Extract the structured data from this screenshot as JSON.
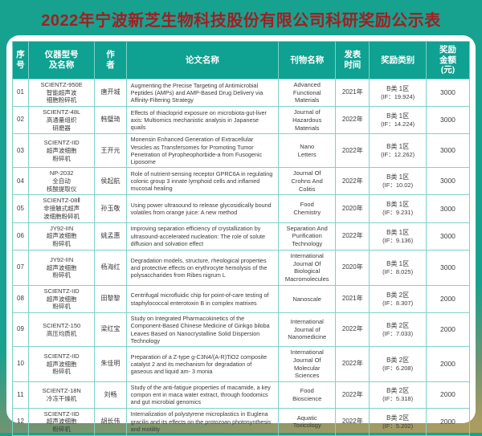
{
  "title": "2022年宁波新芝生物科技股份有限公司科研奖励公示表",
  "colors": {
    "background_teal": "#17a28f",
    "background_olive": "#a69b62",
    "header_bg": "#0fa191",
    "title_red": "#a31e22",
    "cell_border": "#7ed2c8",
    "card_bg": "#ffffff"
  },
  "table": {
    "headers": [
      "序\n号",
      "仪器型号\n及名称",
      "作\n者",
      "论文名称",
      "刊物名称",
      "发表\n时间",
      "奖励类别",
      "奖励\n金额\n(元)"
    ],
    "rows": [
      {
        "no": "01",
        "model": "SCIENTZ-950E\n智能超声波\n细胞粉碎机",
        "author": "唐开城",
        "paper": "Augmenting the Precise Targeting of Antimicrobial Peptides (AMPs) and AMP-Based Drug Delivery via Affinity-Filtering Strategy",
        "journal": "Advanced\nFunctional\nMaterials",
        "year": "2021年",
        "award_class": "B类 1区",
        "award_if": "(IF：19.924)",
        "amount": "3000"
      },
      {
        "no": "02",
        "model": "SCIENTZ-48L\n高通量组织\n研磨器",
        "author": "韩璧琦",
        "paper": "Effects of thiacloprid exposure on microbiota-gut-liver axis: Multiomics mechanistic analysis in Japanese quails",
        "journal": "Journal of\nHazardous\nMaterials",
        "year": "2022年",
        "award_class": "B类 1区",
        "award_if": "(IF：14.224)",
        "amount": "3000"
      },
      {
        "no": "03",
        "model": "SCIENTZ-IID\n超声波细胞\n粉碎机",
        "author": "王开元",
        "paper": "Monensin Enhanced Generation of Extracellular Vesicles as Transfersomes for Promoting Tumor Penetration of Pyropheophorbide-a from Fusogenic Liposome",
        "journal": "Nano\nLetters",
        "year": "2022年",
        "award_class": "B类 1区",
        "award_if": "(IF：12.262)",
        "amount": "3000"
      },
      {
        "no": "04",
        "model": "NP-2032\n全自动\n核酸提取仪",
        "author": "侯起航",
        "paper": "Role of nutrient-sensing receptor GPRC6A in regulating colonic group 3 innate lymphoid cells and inflamed mucosal healing",
        "journal": "Journal Of\nCrohns And\nColitis",
        "year": "2022年",
        "award_class": "B类 1区",
        "award_if": "(IF：10.02)",
        "amount": "3000"
      },
      {
        "no": "05",
        "model": "SCIENTZ-08Ⅱ\n非接触式超声\n波细胞粉碎机",
        "author": "孙玉敬",
        "paper": "Using power ultrasound to release glycosidically bound volatiles from orange juice: A new method",
        "journal": "Food\nChemistry",
        "year": "2020年",
        "award_class": "B类 1区",
        "award_if": "(IF：9.231)",
        "amount": "3000"
      },
      {
        "no": "06",
        "model": "JY92-IIN\n超声波细胞\n粉碎机",
        "author": "姚孟惠",
        "paper": "Improving separation efficiency of crystallization by ultrasound-accelerated nucleation: The role of solute diffusion and solvation effect",
        "journal": "Separation And\nPurification\nTechnology",
        "year": "2022年",
        "award_class": "B类 1区",
        "award_if": "(IF：9.136)",
        "amount": "3000"
      },
      {
        "no": "07",
        "model": "JY92-IIN\n超声波细胞\n粉碎机",
        "author": "杨海红",
        "paper": "Degradation models, structure, rheological properties and protective effects on erythrocyte hemolysis of the polysaccharides from Ribes nigrum L",
        "journal": "International\nJournal Of\nBiological\nMacromolecules",
        "year": "2020年",
        "award_class": "B类 1区",
        "award_if": "(IF：8.025)",
        "amount": "3000"
      },
      {
        "no": "08",
        "model": "SCIENTZ-IID\n超声波细胞\n粉碎机",
        "author": "田黎黎",
        "paper": "Centrifugal microfluidic chip for point-of-care testing of staphylococcal enterotoxin B in complex matrixes",
        "journal": "Nanoscale",
        "year": "2021年",
        "award_class": "B类 2区",
        "award_if": "(IF：8.307)",
        "amount": "2000"
      },
      {
        "no": "09",
        "model": "SCIENTZ-150\n高压均质机",
        "author": "梁红宝",
        "paper": "Study on Integrated Pharmacokinetics of the Component-Based Chinese Medicine of Ginkgo biloba Leaves Based on Nanocrystalline Solid Dispersion Technology",
        "journal": "International\nJournal of\nNanomedicine",
        "year": "2022年",
        "award_class": "B类 2区",
        "award_if": "(IF：7.033)",
        "amount": "2000"
      },
      {
        "no": "10",
        "model": "SCIENTZ-IID\n超声波细胞\n粉碎机",
        "author": "朱佳明",
        "paper": "Preparation of a Z-type g-C3N4/(A-R)TiO2 composite catalyst 2 and its mechanism for degradation of gaseous and liquid am- 3 monia",
        "journal": "International\nJournal Of\nMolecular Sciences",
        "year": "2022年",
        "award_class": "B类 2区",
        "award_if": "(IF：6.208)",
        "amount": "2000"
      },
      {
        "no": "11",
        "model": "SCIENTZ-18N\n冷冻干燥机",
        "author": "刘畅",
        "paper": "Study of the anti-fatigue properties of macamide, a key compon ent in maca water extract, through foodomics and gut microbial genomics",
        "journal": "Food\nBioscience",
        "year": "2022年",
        "award_class": "B类 2区",
        "award_if": "(IF：5.318)",
        "amount": "2000"
      },
      {
        "no": "12",
        "model": "SCIENTZ-IID\n超声波细胞\n粉碎机",
        "author": "胡长伟",
        "paper": "Internalization of polystyrene microplastics in Euglena gracilis and its effects on the protozoan photosynthesis and motility",
        "journal": "Aquatic\nToxicology",
        "year": "2022年",
        "award_class": "B类 2区",
        "award_if": "(IF：5.202)",
        "amount": "2000"
      }
    ]
  }
}
